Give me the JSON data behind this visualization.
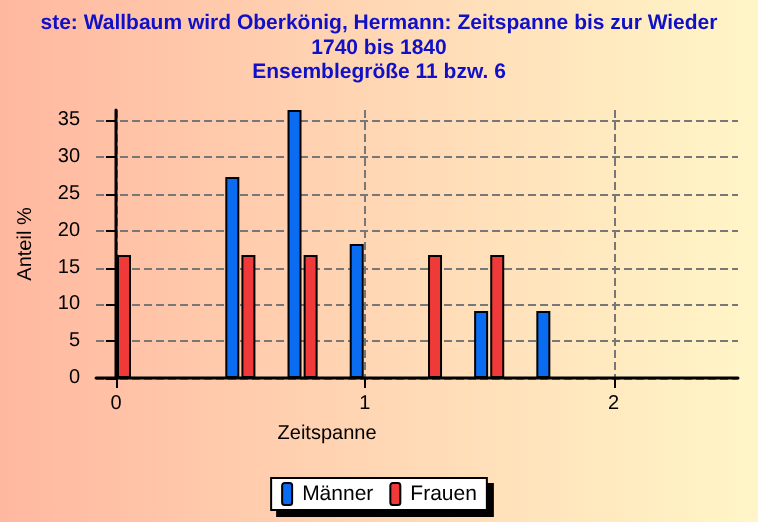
{
  "chart_data": {
    "type": "bar",
    "title": "ste: Wallbaum wird Oberkönig, Hermann: Zeitspanne bis zur Wieder",
    "subtitle": "1740 bis 1840\nEnsemblegröße 11 bzw. 6",
    "xlabel": "Zeitspanne",
    "ylabel": "Anteil %",
    "x": [
      0,
      0.25,
      0.5,
      0.75,
      1,
      1.25,
      1.5,
      1.75,
      2,
      2.25
    ],
    "series": [
      {
        "name": "Männer",
        "color": "#0a6cf0",
        "values": [
          0,
          0,
          27.3,
          36.4,
          18.2,
          0,
          9.1,
          9.1,
          0,
          0
        ]
      },
      {
        "name": "Frauen",
        "color": "#f03a3a",
        "values": [
          16.7,
          0,
          16.7,
          16.7,
          0,
          16.7,
          16.7,
          0,
          0,
          0
        ]
      }
    ],
    "xlim": [
      -0.08,
      2.5
    ],
    "xticks": [
      0,
      1,
      2
    ],
    "ylim": [
      0,
      36.4
    ],
    "yticks": [
      0,
      5,
      10,
      15,
      20,
      25,
      30,
      35
    ],
    "grid": true,
    "legend": "bottom"
  }
}
